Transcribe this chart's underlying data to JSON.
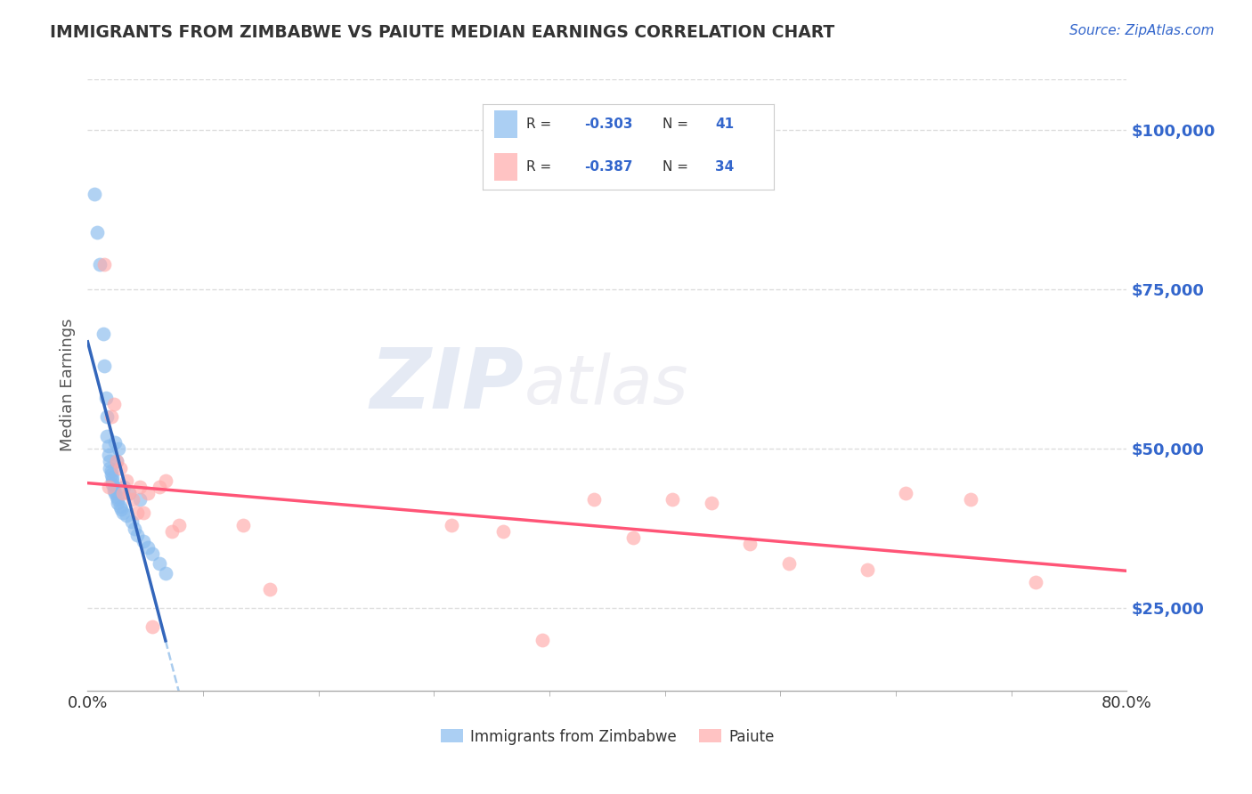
{
  "title": "IMMIGRANTS FROM ZIMBABWE VS PAIUTE MEDIAN EARNINGS CORRELATION CHART",
  "source": "Source: ZipAtlas.com",
  "ylabel": "Median Earnings",
  "right_ytick_labels": [
    "$25,000",
    "$50,000",
    "$75,000",
    "$100,000"
  ],
  "right_ytick_values": [
    25000,
    50000,
    75000,
    100000
  ],
  "ylim": [
    12000,
    108000
  ],
  "xlim": [
    0.0,
    0.8
  ],
  "blue_R": -0.303,
  "blue_N": 41,
  "pink_R": -0.387,
  "pink_N": 34,
  "blue_color": "#88BBEE",
  "pink_color": "#FFAAAA",
  "blue_line_color": "#3366BB",
  "pink_line_color": "#FF5577",
  "watermark_zip": "ZIP",
  "watermark_atlas": "atlas",
  "legend_label_blue": "Immigrants from Zimbabwe",
  "legend_label_pink": "Paiute",
  "blue_scatter_x": [
    0.005,
    0.007,
    0.009,
    0.012,
    0.013,
    0.014,
    0.015,
    0.015,
    0.016,
    0.016,
    0.017,
    0.017,
    0.018,
    0.018,
    0.019,
    0.019,
    0.019,
    0.02,
    0.02,
    0.021,
    0.021,
    0.022,
    0.022,
    0.023,
    0.023,
    0.024,
    0.025,
    0.026,
    0.027,
    0.028,
    0.03,
    0.032,
    0.034,
    0.036,
    0.038,
    0.04,
    0.043,
    0.046,
    0.05,
    0.055,
    0.06
  ],
  "blue_scatter_y": [
    90000,
    84000,
    79000,
    68000,
    63000,
    58000,
    55000,
    52000,
    50500,
    49000,
    48000,
    47000,
    46500,
    46000,
    45500,
    45000,
    44500,
    44000,
    43500,
    43000,
    51000,
    42500,
    48000,
    42000,
    41500,
    50000,
    41000,
    40500,
    40000,
    44000,
    39500,
    43000,
    38500,
    37500,
    36500,
    42000,
    35500,
    34500,
    33500,
    32000,
    30500
  ],
  "pink_scatter_x": [
    0.013,
    0.016,
    0.018,
    0.02,
    0.022,
    0.025,
    0.027,
    0.03,
    0.032,
    0.035,
    0.038,
    0.04,
    0.043,
    0.046,
    0.05,
    0.055,
    0.06,
    0.065,
    0.07,
    0.12,
    0.14,
    0.28,
    0.32,
    0.35,
    0.39,
    0.42,
    0.45,
    0.48,
    0.51,
    0.54,
    0.6,
    0.63,
    0.68,
    0.73
  ],
  "pink_scatter_y": [
    79000,
    44000,
    55000,
    57000,
    48000,
    47000,
    43000,
    45000,
    43000,
    42000,
    40000,
    44000,
    40000,
    43000,
    22000,
    44000,
    45000,
    37000,
    38000,
    38000,
    28000,
    38000,
    37000,
    20000,
    42000,
    36000,
    42000,
    41500,
    35000,
    32000,
    31000,
    43000,
    42000,
    29000
  ],
  "dashed_line_color": "#AACCEE",
  "background_color": "#FFFFFF",
  "grid_color": "#DDDDDD"
}
